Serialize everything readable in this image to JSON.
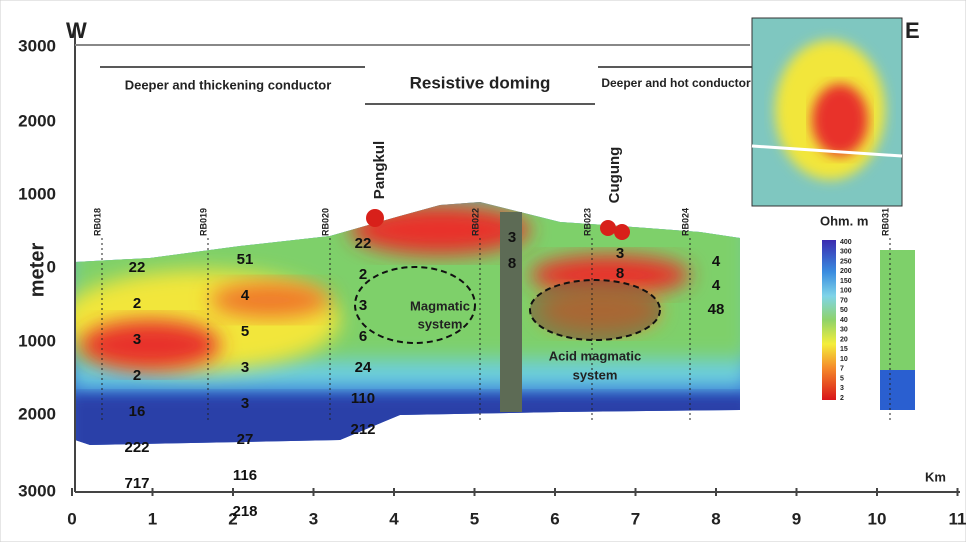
{
  "labels": {
    "west": "W",
    "east": "E",
    "y_axis": "meter",
    "x_unit": "Km",
    "resistive": "Resistive doming",
    "deeper_thick": "Deeper and thickening conductor",
    "deeper_hot": "Deeper and hot conductor",
    "pangkul": "Pangkul",
    "cugung": "Cugung",
    "magmatic": [
      "Magmatic",
      "system"
    ],
    "acid": [
      "Acid magmatic",
      "system"
    ]
  },
  "y_ticks": [
    "3000",
    "2000",
    "1000",
    "0",
    "1000",
    "2000",
    "3000"
  ],
  "x_ticks": [
    "0",
    "1",
    "2",
    "3",
    "4",
    "5",
    "6",
    "7",
    "8",
    "9",
    "10",
    "11"
  ],
  "stations": [
    "RB018",
    "RB019",
    "RB020",
    "RB022",
    "RB023",
    "RB024",
    "RB031"
  ],
  "resistivity_columns": [
    [
      "22",
      "2",
      "3",
      "2",
      "16",
      "222",
      "717"
    ],
    [
      "51",
      "4",
      "5",
      "3",
      "3",
      "27",
      "116",
      "218"
    ],
    [
      "22",
      "2",
      "3",
      "6",
      "24",
      "110",
      "212"
    ],
    [
      "3",
      "8"
    ],
    [
      "3",
      "8"
    ],
    [
      "4",
      "4",
      "48"
    ]
  ],
  "colorbar": {
    "title": "Ohm. m",
    "ticks": [
      "400",
      "300",
      "250",
      "200",
      "150",
      "100",
      "70",
      "50",
      "40",
      "30",
      "20",
      "15",
      "10",
      "7",
      "5",
      "3",
      "2"
    ]
  }
}
